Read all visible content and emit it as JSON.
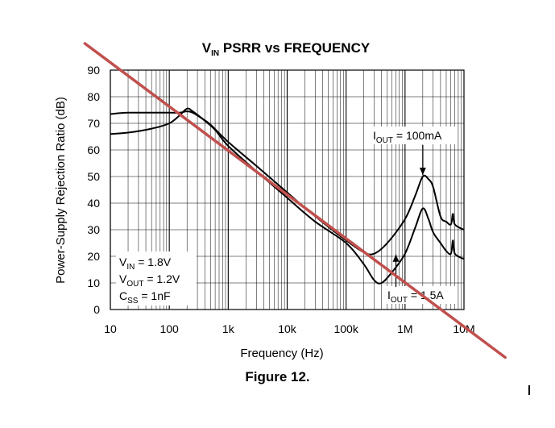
{
  "caption": "Figure 12.",
  "chart_data": {
    "type": "line",
    "title_main": "V",
    "title_sub": "IN",
    "title_rest": " PSRR vs FREQUENCY",
    "xlabel": "Frequency (Hz)",
    "ylabel": "Power-Supply Rejection Ratio (dB)",
    "x_scale": "log",
    "xlim": [
      10,
      10000000
    ],
    "ylim": [
      0,
      90
    ],
    "grid": true,
    "x_ticks": [
      {
        "value": 10,
        "label": "10"
      },
      {
        "value": 100,
        "label": "100"
      },
      {
        "value": 1000,
        "label": "1k"
      },
      {
        "value": 10000,
        "label": "10k"
      },
      {
        "value": 100000,
        "label": "100k"
      },
      {
        "value": 1000000,
        "label": "1M"
      },
      {
        "value": 10000000,
        "label": "10M"
      }
    ],
    "y_ticks": [
      0,
      10,
      20,
      30,
      40,
      50,
      60,
      70,
      80,
      90
    ],
    "series": [
      {
        "values": [
          [
            10,
            73.5
          ],
          [
            20,
            74
          ],
          [
            50,
            74
          ],
          [
            100,
            74
          ],
          [
            150,
            74
          ],
          [
            200,
            74.5
          ],
          [
            250,
            74
          ],
          [
            350,
            72
          ],
          [
            500,
            69.5
          ],
          [
            1000,
            63
          ],
          [
            3000,
            54
          ],
          [
            10000,
            44
          ],
          [
            30000,
            35
          ],
          [
            100000,
            26
          ],
          [
            200000,
            21.5
          ],
          [
            300000,
            21
          ],
          [
            500000,
            25
          ],
          [
            1000000,
            34
          ],
          [
            1500000,
            43
          ],
          [
            2000000,
            50
          ],
          [
            2500000,
            49
          ],
          [
            3000000,
            46
          ],
          [
            4000000,
            35
          ],
          [
            5000000,
            33
          ],
          [
            6000000,
            32
          ],
          [
            6500000,
            36
          ],
          [
            7000000,
            32
          ],
          [
            10000000,
            30
          ]
        ]
      },
      {
        "values": [
          [
            10,
            66
          ],
          [
            20,
            66.5
          ],
          [
            50,
            68
          ],
          [
            100,
            70
          ],
          [
            150,
            73
          ],
          [
            200,
            75.5
          ],
          [
            250,
            74.5
          ],
          [
            400,
            71
          ],
          [
            600,
            67.5
          ],
          [
            1000,
            61.5
          ],
          [
            3000,
            52
          ],
          [
            10000,
            42
          ],
          [
            30000,
            33
          ],
          [
            100000,
            25
          ],
          [
            200000,
            17
          ],
          [
            300000,
            11
          ],
          [
            400000,
            10
          ],
          [
            600000,
            14
          ],
          [
            1000000,
            21
          ],
          [
            1500000,
            31
          ],
          [
            2000000,
            38
          ],
          [
            2500000,
            34
          ],
          [
            3000000,
            29
          ],
          [
            4000000,
            25
          ],
          [
            5000000,
            22
          ],
          [
            6000000,
            21
          ],
          [
            6500000,
            26
          ],
          [
            7000000,
            21
          ],
          [
            10000000,
            19
          ]
        ]
      }
    ],
    "annotations": {
      "iout_high": {
        "main": "I",
        "sub": "OUT",
        "rest": " = 100mA",
        "point": [
          2000000,
          50
        ]
      },
      "iout_low": {
        "main": "I",
        "sub": "OUT",
        "rest": " = 1.5A",
        "point": [
          700000,
          21
        ]
      },
      "conditions": [
        {
          "main": "V",
          "sub": "IN",
          "rest": " = 1.8V"
        },
        {
          "main": "V",
          "sub": "OUT",
          "rest": " = 1.2V"
        },
        {
          "main": "C",
          "sub": "SS",
          "rest": " = 1nF"
        }
      ]
    },
    "overlay_line": {
      "color": "#c0504d",
      "from": [
        3.7,
        100
      ],
      "to": [
        50000000,
        -18
      ]
    }
  }
}
